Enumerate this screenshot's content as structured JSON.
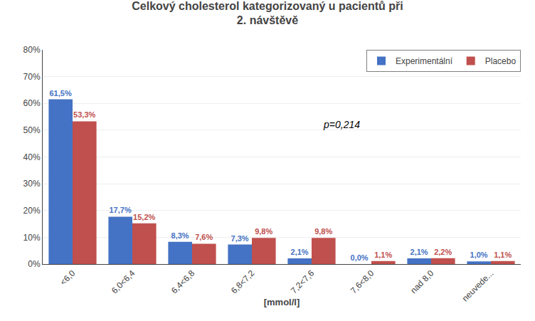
{
  "chart_data": {
    "type": "bar",
    "title": "Celkový cholesterol kategorizovaný u pacientů při\n2. návštěvě",
    "xlabel": "[mmol/l]",
    "categories": [
      "<6,0",
      "6,0<6,4",
      "6,4<6,8",
      "6,8<7,2",
      "7,2<7,6",
      "7,6<8,0",
      "nad 8,0",
      "neuvede..."
    ],
    "series": [
      {
        "name": "Experimentální",
        "color": "#4472C4",
        "values": [
          61.5,
          17.7,
          8.3,
          7.3,
          2.1,
          0.0,
          2.1,
          1.0
        ],
        "value_labels": [
          "61,5%",
          "17,7%",
          "8,3%",
          "7,3%",
          "2,1%",
          "0,0%",
          "2,1%",
          "1,0%"
        ]
      },
      {
        "name": "Placebo",
        "color": "#C0504D",
        "values": [
          53.3,
          15.2,
          7.6,
          9.8,
          9.8,
          1.1,
          2.2,
          1.1
        ],
        "value_labels": [
          "53,3%",
          "15,2%",
          "7,6%",
          "9,8%",
          "9,8%",
          "1,1%",
          "2,2%",
          "1,1%"
        ]
      }
    ],
    "annotations": [
      "p=0,214"
    ],
    "ylim": [
      0,
      80
    ],
    "yticks": [
      {
        "value": 0,
        "label": "0%"
      },
      {
        "value": 10,
        "label": "10%"
      },
      {
        "value": 20,
        "label": "20%"
      },
      {
        "value": 30,
        "label": "30%"
      },
      {
        "value": 40,
        "label": "40%"
      },
      {
        "value": 50,
        "label": "50%"
      },
      {
        "value": 60,
        "label": "60%"
      },
      {
        "value": 70,
        "label": "70%"
      },
      {
        "value": 80,
        "label": "80%"
      }
    ],
    "grid": true,
    "legend": "upper right",
    "data_labels": true
  }
}
